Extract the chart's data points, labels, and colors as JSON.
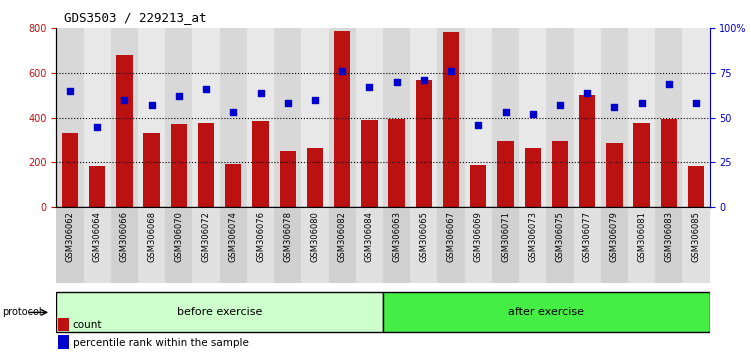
{
  "title": "GDS3503 / 229213_at",
  "categories": [
    "GSM306062",
    "GSM306064",
    "GSM306066",
    "GSM306068",
    "GSM306070",
    "GSM306072",
    "GSM306074",
    "GSM306076",
    "GSM306078",
    "GSM306080",
    "GSM306082",
    "GSM306084",
    "GSM306063",
    "GSM306065",
    "GSM306067",
    "GSM306069",
    "GSM306071",
    "GSM306073",
    "GSM306075",
    "GSM306077",
    "GSM306079",
    "GSM306081",
    "GSM306083",
    "GSM306085"
  ],
  "counts": [
    330,
    185,
    680,
    330,
    370,
    375,
    195,
    385,
    250,
    265,
    790,
    390,
    395,
    570,
    785,
    190,
    295,
    265,
    295,
    500,
    285,
    375,
    395,
    185
  ],
  "percentile_ranks": [
    65,
    45,
    60,
    57,
    62,
    66,
    53,
    64,
    58,
    60,
    76,
    67,
    70,
    71,
    76,
    46,
    53,
    52,
    57,
    64,
    56,
    58,
    69,
    58
  ],
  "left_ylim": [
    0,
    800
  ],
  "right_ylim": [
    0,
    100
  ],
  "left_yticks": [
    0,
    200,
    400,
    600,
    800
  ],
  "right_yticks": [
    0,
    25,
    50,
    75,
    100
  ],
  "right_yticklabels": [
    "0",
    "25",
    "50",
    "75",
    "100%"
  ],
  "bar_color": "#bb1111",
  "dot_color": "#0000cc",
  "before_label": "before exercise",
  "after_label": "after exercise",
  "before_count": 12,
  "after_count": 12,
  "protocol_label": "protocol",
  "before_color": "#ccffcc",
  "after_color": "#44ee44",
  "legend_count_label": "count",
  "legend_pct_label": "percentile rank within the sample"
}
